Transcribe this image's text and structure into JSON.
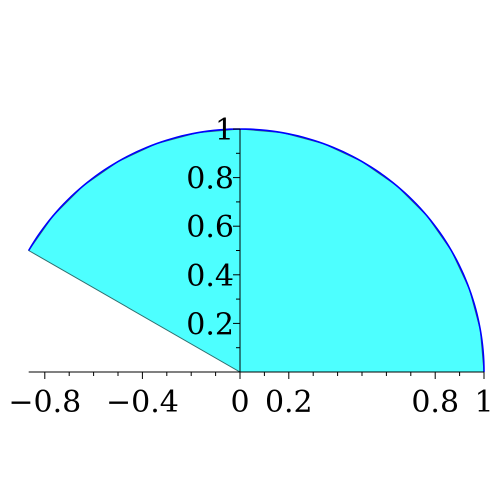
{
  "chart_data": {
    "type": "area",
    "title": "",
    "xlabel": "",
    "ylabel": "",
    "xlim": [
      -0.866,
      1
    ],
    "ylim": [
      0,
      1
    ],
    "grid": false,
    "legend": "none",
    "fill_color": "#4dffff",
    "curve_color": "#0000ff",
    "edge_color": "#2f6f6f",
    "x_ticks": [
      {
        "value": -0.8,
        "label": "−0.8"
      },
      {
        "value": -0.4,
        "label": "−0.4"
      },
      {
        "value": 0,
        "label": "0"
      },
      {
        "value": 0.2,
        "label": "0.2"
      },
      {
        "value": 0.8,
        "label": "0.8"
      },
      {
        "value": 1,
        "label": "1"
      }
    ],
    "x_minor_ticks": [
      -0.7,
      -0.6,
      -0.5,
      -0.3,
      -0.2,
      -0.1,
      0.1,
      0.3,
      0.4,
      0.5,
      0.6,
      0.7,
      0.9
    ],
    "y_ticks": [
      {
        "value": 0.2,
        "label": "0.2"
      },
      {
        "value": 0.4,
        "label": "0.4"
      },
      {
        "value": 0.6,
        "label": "0.6"
      },
      {
        "value": 0.8,
        "label": "0.8"
      },
      {
        "value": 1,
        "label": "1"
      }
    ],
    "y_minor_ticks": [
      0.1,
      0.3,
      0.5,
      0.7,
      0.9
    ],
    "sector": {
      "radius": 1,
      "angle_start_deg": 0,
      "angle_end_deg": 150
    },
    "polygon_approx": [
      [
        1,
        0
      ],
      [
        0.985,
        0.174
      ],
      [
        0.94,
        0.342
      ],
      [
        0.866,
        0.5
      ],
      [
        0.766,
        0.643
      ],
      [
        0.643,
        0.766
      ],
      [
        0.5,
        0.866
      ],
      [
        0.342,
        0.94
      ],
      [
        0.174,
        0.985
      ],
      [
        0,
        1
      ],
      [
        -0.174,
        0.985
      ],
      [
        -0.342,
        0.94
      ],
      [
        -0.5,
        0.866
      ],
      [
        -0.643,
        0.766
      ],
      [
        -0.766,
        0.643
      ],
      [
        -0.866,
        0.5
      ],
      [
        0,
        0
      ],
      [
        0,
        1
      ]
    ]
  }
}
